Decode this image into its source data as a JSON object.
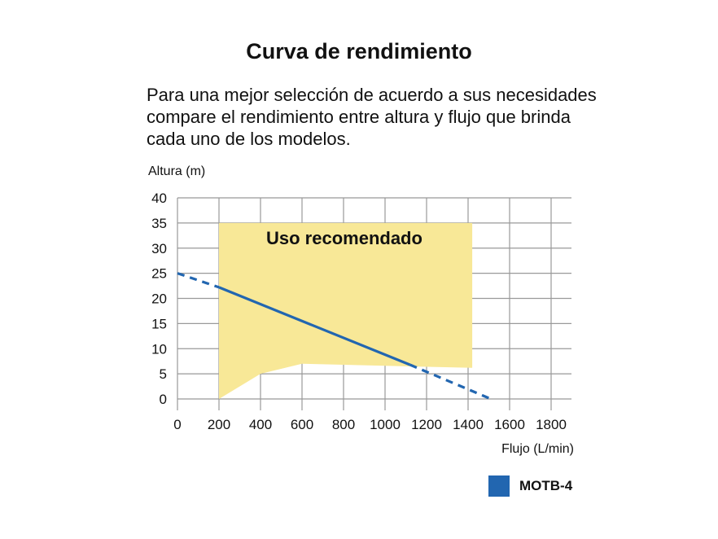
{
  "heading": "Curva de rendimiento",
  "intro_lines": [
    "Para una mejor selección de acuerdo a sus necesidades",
    "compare el rendimiento entre altura y flujo que brinda",
    "cada uno de los modelos."
  ],
  "colors": {
    "region": "#f8e897",
    "series": "#2266b0",
    "grid": "#999999"
  },
  "chart_data": {
    "type": "line",
    "xlabel": "Flujo (L/min)",
    "ylabel": "Altura (m)",
    "xlim": [
      0,
      1900
    ],
    "ylim": [
      0,
      40
    ],
    "xticks": [
      0,
      200,
      400,
      600,
      800,
      1000,
      1200,
      1400,
      1600,
      1800
    ],
    "yticks": [
      0,
      5,
      10,
      15,
      20,
      25,
      30,
      35,
      40
    ],
    "grid": true,
    "legend_position": "bottom-right",
    "recommended_region": {
      "label": "Uso recomendado",
      "upper": [
        [
          200,
          35
        ],
        [
          1420,
          35
        ]
      ],
      "lower": [
        [
          200,
          0
        ],
        [
          400,
          5
        ],
        [
          600,
          7
        ],
        [
          1100,
          6.5
        ],
        [
          1420,
          6.2
        ]
      ]
    },
    "series": [
      {
        "name": "MOTB-4",
        "color": "#2266b0",
        "points": [
          [
            0,
            25
          ],
          [
            200,
            22.2
          ],
          [
            1120,
            6.8
          ],
          [
            1510,
            0
          ]
        ],
        "solid_range": [
          200,
          1120
        ]
      }
    ]
  }
}
